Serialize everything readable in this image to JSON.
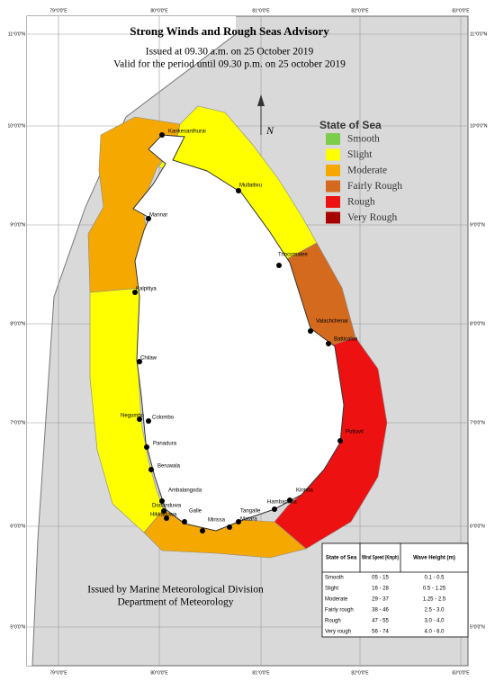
{
  "title": "Strong Winds and Rough Seas Advisory",
  "issued": "Issued at 09.30 a.m. on 25 October 2019",
  "valid": "Valid for the period until 09.30 p.m. on 25 october 2019",
  "north_label": "N",
  "legend": {
    "title": "State of Sea",
    "items": [
      {
        "label": "Smooth",
        "color": "#7ccd4a"
      },
      {
        "label": "Slight",
        "color": "#ffff00"
      },
      {
        "label": "Moderate",
        "color": "#f5a800"
      },
      {
        "label": "Fairly Rough",
        "color": "#d36a1e"
      },
      {
        "label": "Rough",
        "color": "#ee1111"
      },
      {
        "label": "Very Rough",
        "color": "#a80000"
      }
    ]
  },
  "places": [
    "Kankesanthurai",
    "Mullaitivu",
    "Mannar",
    "Trincomalee",
    "Kalpitiya",
    "Valachchenai",
    "Batticaloa",
    "Chilaw",
    "Negombo",
    "Colombo",
    "Panadura",
    "Pottuvil",
    "Beruwala",
    "Ambalangoda",
    "Kirinda",
    "Hambantota",
    "Dodanduwa",
    "Hikkaduwa",
    "Galle",
    "Mirissa",
    "Tangalle",
    "Matara"
  ],
  "grid": {
    "lon": [
      "79°0'0\"E",
      "80°0'0\"E",
      "81°0'0\"E",
      "82°0'0\"E",
      "83°0'0\"E"
    ],
    "lat": [
      "11°0'0\"N",
      "10°0'0\"N",
      "9°0'0\"N",
      "8°0'0\"N",
      "7°0'0\"N",
      "6°0'0\"N",
      "5°0'0\"N"
    ]
  },
  "table": {
    "headers": [
      "State of Sea",
      "Wind Speed (Kmph)",
      "Wave Height (m)"
    ],
    "rows": [
      [
        "Smooth",
        "05 - 15",
        "0.1 - 0.5"
      ],
      [
        "Slight",
        "16 - 28",
        "0.5 - 1.25"
      ],
      [
        "Moderate",
        "29 - 37",
        "1.25 - 2.5"
      ],
      [
        "Fairly rough",
        "38 - 46",
        "2.5 - 3.0"
      ],
      [
        "Rough",
        "47 - 55",
        "3.0 - 4.0"
      ],
      [
        "Very rough",
        "56 - 74",
        "4.0 - 6.0"
      ]
    ]
  },
  "footer": [
    "Issued by Marine Meteorological Division",
    "Department of Meteorology"
  ]
}
